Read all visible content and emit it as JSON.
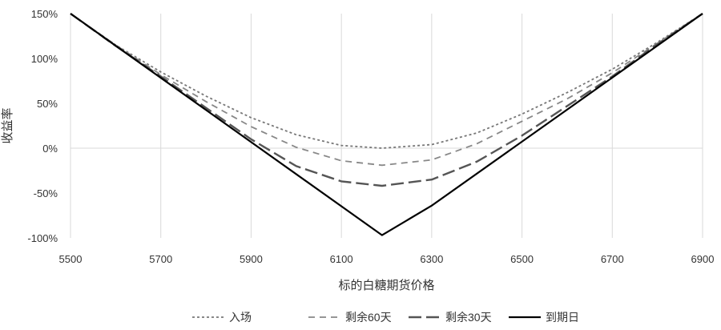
{
  "chart_data": {
    "type": "line",
    "title": "",
    "xlabel": "标的白糖期货价格",
    "ylabel": "收益率",
    "xlim": [
      5500,
      6900
    ],
    "ylim": [
      -100,
      150
    ],
    "x_ticks": [
      "5500",
      "5700",
      "5900",
      "6100",
      "6300",
      "6500",
      "6700",
      "6900"
    ],
    "y_ticks": [
      "150%",
      "100%",
      "50%",
      "0%",
      "-50%",
      "-100%"
    ],
    "grid": "vertical",
    "legend_position": "bottom",
    "series": [
      {
        "name": "入场",
        "style": "dotted",
        "color": "#777777",
        "points": [
          [
            5500,
            150
          ],
          [
            5600,
            115
          ],
          [
            5700,
            85
          ],
          [
            5800,
            58
          ],
          [
            5900,
            34
          ],
          [
            6000,
            15
          ],
          [
            6100,
            3
          ],
          [
            6190,
            0
          ],
          [
            6300,
            4
          ],
          [
            6400,
            17
          ],
          [
            6500,
            38
          ],
          [
            6600,
            62
          ],
          [
            6700,
            88
          ],
          [
            6800,
            118
          ],
          [
            6900,
            150
          ]
        ]
      },
      {
        "name": "剩余60天",
        "style": "dashed",
        "color": "#888888",
        "points": [
          [
            5500,
            150
          ],
          [
            5600,
            115
          ],
          [
            5700,
            82
          ],
          [
            5800,
            52
          ],
          [
            5900,
            24
          ],
          [
            6000,
            1
          ],
          [
            6100,
            -14
          ],
          [
            6190,
            -19
          ],
          [
            6300,
            -13
          ],
          [
            6400,
            5
          ],
          [
            6500,
            30
          ],
          [
            6600,
            55
          ],
          [
            6700,
            84
          ],
          [
            6800,
            117
          ],
          [
            6900,
            150
          ]
        ]
      },
      {
        "name": "剩余30天",
        "style": "long-dash",
        "color": "#555555",
        "points": [
          [
            5500,
            150
          ],
          [
            5600,
            114
          ],
          [
            5700,
            80
          ],
          [
            5800,
            45
          ],
          [
            5900,
            10
          ],
          [
            6000,
            -20
          ],
          [
            6100,
            -37
          ],
          [
            6190,
            -42
          ],
          [
            6300,
            -35
          ],
          [
            6400,
            -15
          ],
          [
            6500,
            14
          ],
          [
            6600,
            47
          ],
          [
            6700,
            80
          ],
          [
            6800,
            116
          ],
          [
            6900,
            150
          ]
        ]
      },
      {
        "name": "到期日",
        "style": "solid",
        "color": "#000000",
        "points": [
          [
            5500,
            150
          ],
          [
            6190,
            -97
          ],
          [
            6300,
            -64
          ],
          [
            6900,
            150
          ]
        ]
      }
    ]
  }
}
